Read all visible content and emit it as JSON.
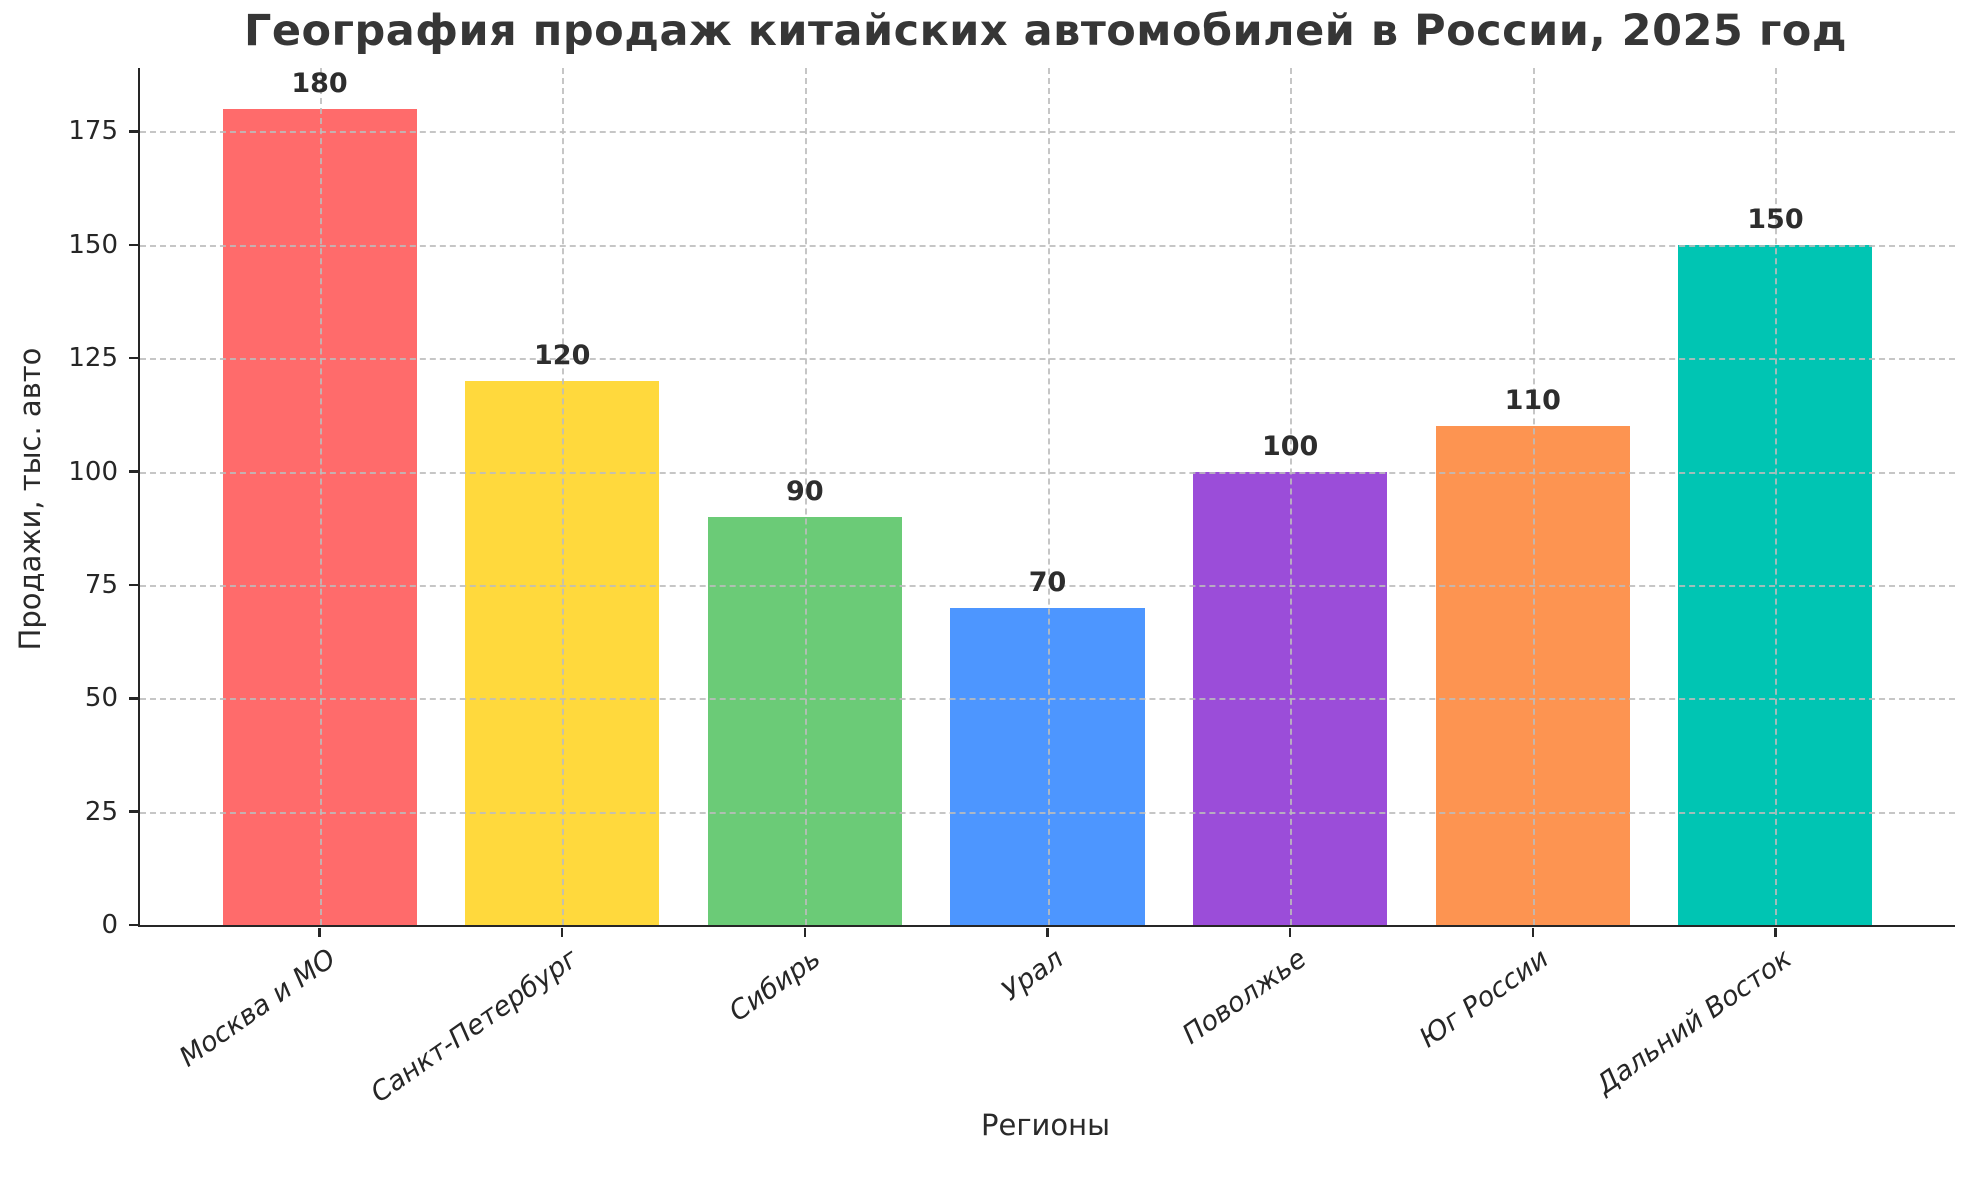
{
  "figure": {
    "background": "#ffffff",
    "text_color": "#2a2a2a",
    "title_color": "#363636",
    "grid_color": "#bdbdbd",
    "spine_color": "#262626",
    "value_label_color": "#2d2d2d"
  },
  "chart_data": {
    "type": "bar",
    "title": "География продаж китайских автомобилей в России, 2025 год",
    "xlabel": "Регионы",
    "ylabel": "Продажи, тыс. авто",
    "categories": [
      "Москва и МО",
      "Санкт-Петербург",
      "Сибирь",
      "Урал",
      "Поволжье",
      "Юг России",
      "Дальний Восток"
    ],
    "values": [
      180,
      120,
      90,
      70,
      100,
      110,
      150
    ],
    "value_labels": [
      "180",
      "120",
      "90",
      "70",
      "100",
      "110",
      "150"
    ],
    "bar_colors": [
      "#FF6B6B",
      "#FFD93D",
      "#6BCB77",
      "#4D96FF",
      "#9B4DD9",
      "#FD9451",
      "#00C5B3"
    ],
    "yticks": [
      0,
      25,
      50,
      75,
      100,
      125,
      150,
      175
    ],
    "ylim": [
      0,
      189
    ],
    "bar_width_fraction": 0.8,
    "x_tick_rotation_deg": 35,
    "grid": {
      "style": "dashed",
      "axes": "both",
      "above_bars": true
    },
    "legend_position": "none"
  }
}
